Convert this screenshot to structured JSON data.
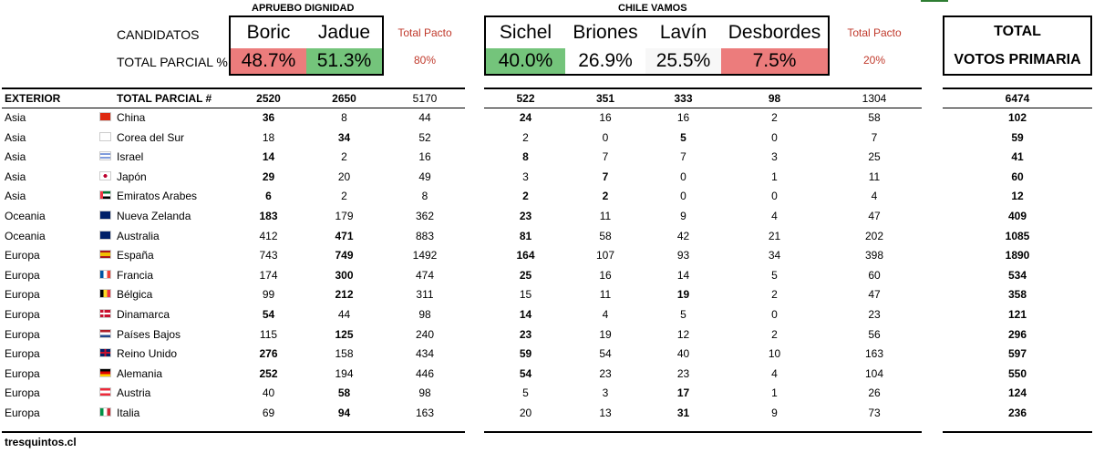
{
  "header": {
    "group1": "APRUEBO DIGNIDAD",
    "group2": "CHILE VAMOS",
    "candidatos_label": "CANDIDATOS",
    "total_parcial_pct_label": "TOTAL PARCIAL %",
    "total_box_line1": "TOTAL",
    "total_box_line2": "VOTOS PRIMARIA"
  },
  "candidates": {
    "boric": {
      "name": "Boric",
      "pct": "48.7%",
      "bg": "#ec7c7c"
    },
    "jadue": {
      "name": "Jadue",
      "pct": "51.3%",
      "bg": "#74c47b"
    },
    "pacto1": {
      "label": "Total Pacto",
      "pct": "80%"
    },
    "sichel": {
      "name": "Sichel",
      "pct": "40.0%",
      "bg": "#74c47b"
    },
    "briones": {
      "name": "Briones",
      "pct": "26.9%",
      "bg": "#ffffff"
    },
    "lavin": {
      "name": "Lavín",
      "pct": "25.5%",
      "bg": "#f7f7f7"
    },
    "desbordes": {
      "name": "Desbordes",
      "pct": "7.5%",
      "bg": "#ec7c7c"
    },
    "pacto2": {
      "label": "Total Pacto",
      "pct": "20%"
    }
  },
  "totals_row": {
    "region": "EXTERIOR",
    "label": "TOTAL PARCIAL #",
    "boric": "2520",
    "jadue": "2650",
    "pacto1": "5170",
    "sichel": "522",
    "briones": "351",
    "lavin": "333",
    "desbordes": "98",
    "pacto2": "1304",
    "total": "6474"
  },
  "rows": [
    {
      "region": "Asia",
      "country": "China",
      "flag": "cn",
      "v": [
        "36",
        "8",
        "44",
        "24",
        "16",
        "16",
        "2",
        "58",
        "102"
      ],
      "bold": [
        0,
        3
      ]
    },
    {
      "region": "Asia",
      "country": "Corea del Sur",
      "flag": "kr",
      "v": [
        "18",
        "34",
        "52",
        "2",
        "0",
        "5",
        "0",
        "7",
        "59"
      ],
      "bold": [
        1,
        5
      ]
    },
    {
      "region": "Asia",
      "country": "Israel",
      "flag": "il",
      "v": [
        "14",
        "2",
        "16",
        "8",
        "7",
        "7",
        "3",
        "25",
        "41"
      ],
      "bold": [
        0,
        3
      ]
    },
    {
      "region": "Asia",
      "country": "Japón",
      "flag": "jp",
      "v": [
        "29",
        "20",
        "49",
        "3",
        "7",
        "0",
        "1",
        "11",
        "60"
      ],
      "bold": [
        0,
        4
      ]
    },
    {
      "region": "Asia",
      "country": "Emiratos Arabes",
      "flag": "ae",
      "v": [
        "6",
        "2",
        "8",
        "2",
        "2",
        "0",
        "0",
        "4",
        "12"
      ],
      "bold": [
        0,
        3,
        4
      ]
    },
    {
      "region": "Oceania",
      "country": "Nueva Zelanda",
      "flag": "nz",
      "v": [
        "183",
        "179",
        "362",
        "23",
        "11",
        "9",
        "4",
        "47",
        "409"
      ],
      "bold": [
        0,
        3
      ]
    },
    {
      "region": "Oceania",
      "country": "Australia",
      "flag": "au",
      "v": [
        "412",
        "471",
        "883",
        "81",
        "58",
        "42",
        "21",
        "202",
        "1085"
      ],
      "bold": [
        1,
        3
      ]
    },
    {
      "region": "Europa",
      "country": "España",
      "flag": "es",
      "v": [
        "743",
        "749",
        "1492",
        "164",
        "107",
        "93",
        "34",
        "398",
        "1890"
      ],
      "bold": [
        1,
        3
      ]
    },
    {
      "region": "Europa",
      "country": "Francia",
      "flag": "fr",
      "v": [
        "174",
        "300",
        "474",
        "25",
        "16",
        "14",
        "5",
        "60",
        "534"
      ],
      "bold": [
        1,
        3
      ]
    },
    {
      "region": "Europa",
      "country": "Bélgica",
      "flag": "be",
      "v": [
        "99",
        "212",
        "311",
        "15",
        "11",
        "19",
        "2",
        "47",
        "358"
      ],
      "bold": [
        1,
        5
      ]
    },
    {
      "region": "Europa",
      "country": "Dinamarca",
      "flag": "dk",
      "v": [
        "54",
        "44",
        "98",
        "14",
        "4",
        "5",
        "0",
        "23",
        "121"
      ],
      "bold": [
        0,
        3
      ]
    },
    {
      "region": "Europa",
      "country": "Países Bajos",
      "flag": "nl",
      "v": [
        "115",
        "125",
        "240",
        "23",
        "19",
        "12",
        "2",
        "56",
        "296"
      ],
      "bold": [
        1,
        3
      ]
    },
    {
      "region": "Europa",
      "country": "Reino Unido",
      "flag": "gb",
      "v": [
        "276",
        "158",
        "434",
        "59",
        "54",
        "40",
        "10",
        "163",
        "597"
      ],
      "bold": [
        0,
        3
      ]
    },
    {
      "region": "Europa",
      "country": "Alemania",
      "flag": "de",
      "v": [
        "252",
        "194",
        "446",
        "54",
        "23",
        "23",
        "4",
        "104",
        "550"
      ],
      "bold": [
        0,
        3
      ]
    },
    {
      "region": "Europa",
      "country": "Austria",
      "flag": "at",
      "v": [
        "40",
        "58",
        "98",
        "5",
        "3",
        "17",
        "1",
        "26",
        "124"
      ],
      "bold": [
        1,
        5
      ]
    },
    {
      "region": "Europa",
      "country": "Italia",
      "flag": "it",
      "v": [
        "69",
        "94",
        "163",
        "20",
        "13",
        "31",
        "9",
        "73",
        "236"
      ],
      "bold": [
        1,
        5
      ]
    }
  ],
  "footer": {
    "source": "tresquintos.cl"
  },
  "colors": {
    "red": "#ec7c7c",
    "green": "#74c47b",
    "pacto": "#c0392b"
  }
}
